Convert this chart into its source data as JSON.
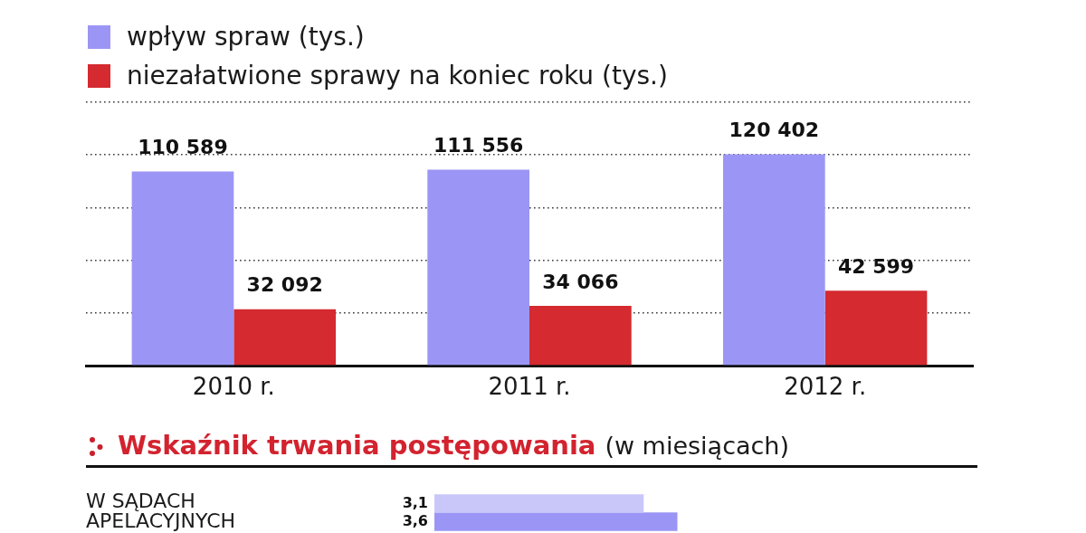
{
  "chart_data": [
    {
      "type": "bar",
      "categories": [
        "2010 r.",
        "2011 r.",
        "2012 r."
      ],
      "series": [
        {
          "name": "wpływ spraw (tys.)",
          "color": "#9b96f5",
          "values": [
            110589,
            111556,
            120402
          ],
          "value_labels": [
            "110 589",
            "111 556",
            "120 402"
          ]
        },
        {
          "name": "niezałatwione sprawy na koniec roku (tys.)",
          "color": "#d42a30",
          "values": [
            32092,
            34066,
            42599
          ],
          "value_labels": [
            "32 092",
            "34 066",
            "42 599"
          ]
        }
      ],
      "ylim": [
        0,
        150000
      ],
      "yticks": [
        {
          "value": 0,
          "label": null
        },
        {
          "value": 30000,
          "label": null
        },
        {
          "value": 60000,
          "label": null
        },
        {
          "value": 90000,
          "label": null
        },
        {
          "value": 120000,
          "label": null
        },
        {
          "value": 150000,
          "label": null
        }
      ],
      "grid": "y",
      "legend": "top left",
      "tick_labels": "x"
    },
    {
      "type": "bar",
      "orientation": "horizontal",
      "title": "Wskaźnik trwania postępowania",
      "subtitle": "(w miesiącach)",
      "categories": [
        "W SĄDACH APELACYJNYCH"
      ],
      "series": [
        {
          "color": "#c9c7f9",
          "values": [
            3.1
          ],
          "value_labels": [
            "3,1"
          ]
        },
        {
          "color": "#9b96f5",
          "values": [
            3.6
          ],
          "value_labels": [
            "3,6"
          ]
        }
      ],
      "tick_labels": "y"
    }
  ]
}
